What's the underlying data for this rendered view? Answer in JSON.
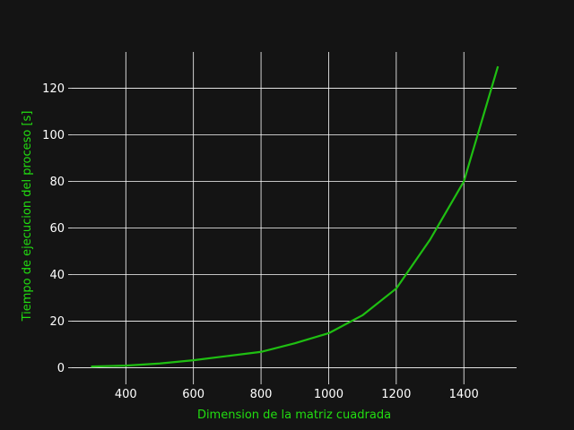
{
  "chart_data": {
    "type": "line",
    "title": "",
    "xlabel": "Dimension de la matriz cuadrada",
    "ylabel": "Tiempo de ejecucion del proceso [s]",
    "xlim": [
      240,
      1556
    ],
    "ylim": [
      -5.6,
      135.6
    ],
    "xticks": [
      400,
      600,
      800,
      1000,
      1200,
      1400
    ],
    "yticks": [
      0,
      20,
      40,
      60,
      80,
      100,
      120
    ],
    "grid": true,
    "legend": "none",
    "colors": {
      "background": "#141414",
      "grid": "#ffffff",
      "ticks": "#ffffff",
      "labels": "#22dd11",
      "line": "#1fbf12"
    },
    "series": [
      {
        "x": [
          300,
          400,
          500,
          600,
          700,
          800,
          900,
          1000,
          1100,
          1200,
          1300,
          1400,
          1500
        ],
        "values": [
          0.5,
          0.9,
          1.8,
          3.2,
          5.0,
          6.8,
          10.5,
          14.8,
          22.5,
          34.0,
          55.0,
          80.0,
          129.0
        ]
      }
    ]
  }
}
